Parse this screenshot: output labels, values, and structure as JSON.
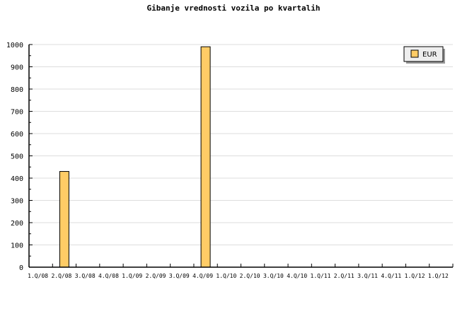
{
  "chart_data": {
    "type": "bar",
    "title": "Gibanje vrednosti vozila po kvartalih",
    "xlabel": "",
    "ylabel": "",
    "categories": [
      "1.Q/08",
      "2.Q/08",
      "3.Q/08",
      "4.Q/08",
      "1.Q/09",
      "2.Q/09",
      "3.Q/09",
      "4.Q/09",
      "1.Q/10",
      "2.Q/10",
      "3.Q/10",
      "4.Q/10",
      "1.Q/11",
      "2.Q/11",
      "3.Q/11",
      "4.Q/11",
      "1.Q/12",
      "1.Q/12"
    ],
    "series": [
      {
        "name": "EUR",
        "values": [
          0,
          430,
          0,
          0,
          0,
          0,
          0,
          990,
          0,
          0,
          0,
          0,
          0,
          0,
          0,
          0,
          0,
          0
        ]
      }
    ],
    "ylim": [
      0,
      1000
    ],
    "yticks": [
      0,
      100,
      200,
      300,
      400,
      500,
      600,
      700,
      800,
      900,
      1000
    ],
    "grid": "horizontal",
    "legend": "top-right",
    "colors": {
      "bar": "#ffcc66",
      "bar_border": "#000000",
      "grid": "#dddddd",
      "legend_bg": "#eeeeee"
    }
  }
}
